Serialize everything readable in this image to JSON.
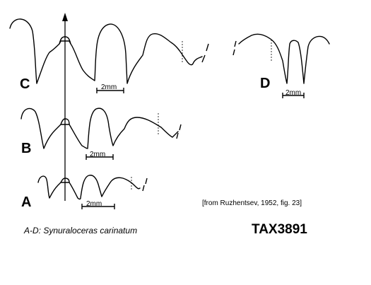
{
  "figure": {
    "panels": [
      {
        "letter": "A",
        "scale_label": "2mm"
      },
      {
        "letter": "B",
        "scale_label": "2mm"
      },
      {
        "letter": "C",
        "scale_label": "2mm"
      },
      {
        "letter": "D",
        "scale_label": "2mm"
      }
    ],
    "source_note": "[from Ruzhentsev, 1952, fig. 23]",
    "species_caption": "A-D: Synuraloceras carinatum",
    "tax_id": "TAX3891"
  }
}
